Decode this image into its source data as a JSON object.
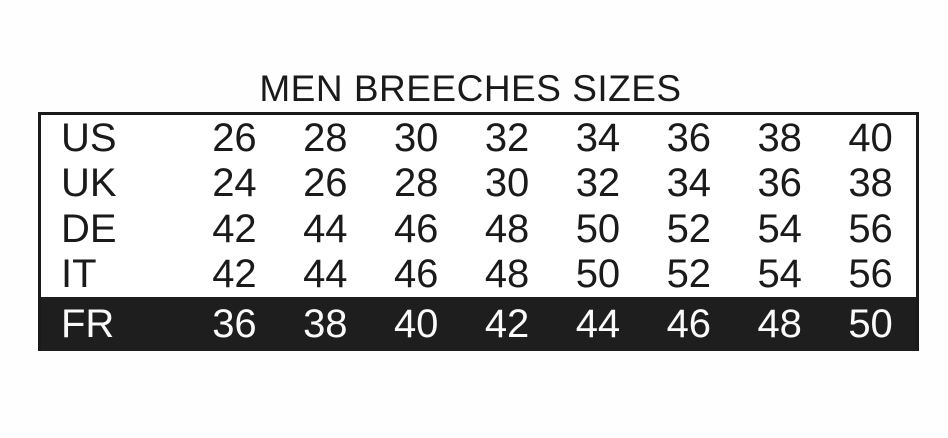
{
  "title": "MEN BREECHES SIZES",
  "colors": {
    "page_bg": "#fefefe",
    "ink": "#1a1a1a",
    "band_bg": "#1e1e1e",
    "band_text": "#fafafa"
  },
  "chart_data": {
    "type": "table",
    "title": "MEN BREECHES SIZES",
    "rows": [
      {
        "label": "US",
        "values": [
          "26",
          "28",
          "30",
          "32",
          "34",
          "36",
          "38",
          "40"
        ],
        "highlight": false
      },
      {
        "label": "UK",
        "values": [
          "24",
          "26",
          "28",
          "30",
          "32",
          "34",
          "36",
          "38"
        ],
        "highlight": false
      },
      {
        "label": "DE",
        "values": [
          "42",
          "44",
          "46",
          "48",
          "50",
          "52",
          "54",
          "56"
        ],
        "highlight": false
      },
      {
        "label": "IT",
        "values": [
          "42",
          "44",
          "46",
          "48",
          "50",
          "52",
          "54",
          "56"
        ],
        "highlight": false
      },
      {
        "label": "FR",
        "values": [
          "36",
          "38",
          "40",
          "42",
          "44",
          "46",
          "48",
          "50"
        ],
        "highlight": true
      }
    ]
  }
}
